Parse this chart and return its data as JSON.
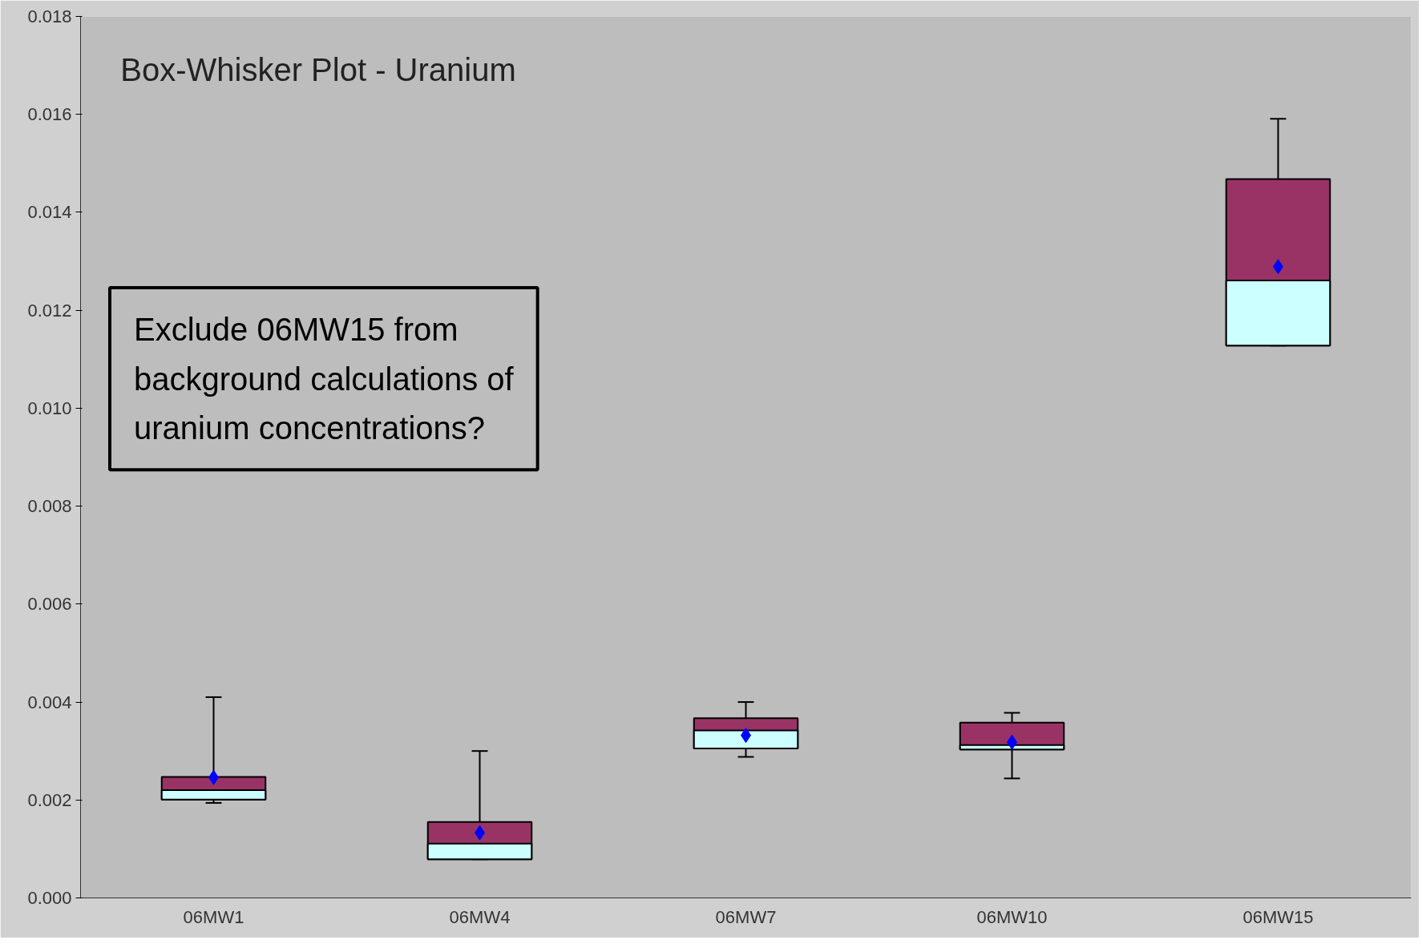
{
  "chart_data": {
    "type": "box",
    "title": "Box-Whisker Plot - Uranium",
    "categories": [
      "06MW1",
      "06MW4",
      "06MW7",
      "06MW10",
      "06MW15"
    ],
    "series": [
      {
        "color": "#993366",
        "boxes": [
          {
            "low": 0.00194,
            "q1": 0.00201,
            "median": 0.0022,
            "q3": 0.00247,
            "high": 0.0041,
            "mean": 0.00246
          },
          {
            "low": 0.00079,
            "q1": 0.00079,
            "median": 0.00111,
            "q3": 0.00155,
            "high": 0.003,
            "mean": 0.00133
          },
          {
            "low": 0.00288,
            "q1": 0.00305,
            "median": 0.00342,
            "q3": 0.00367,
            "high": 0.004,
            "mean": 0.00332
          },
          {
            "low": 0.00244,
            "q1": 0.00303,
            "median": 0.00312,
            "q3": 0.00358,
            "high": 0.00378,
            "mean": 0.00318
          },
          {
            "low": 0.01128,
            "q1": 0.01128,
            "median": 0.01261,
            "q3": 0.01468,
            "high": 0.01591,
            "mean": 0.01289
          }
        ]
      }
    ],
    "marker": "diamond",
    "ylim": [
      0,
      0.018
    ],
    "yticks": [
      {
        "value": 0,
        "label": "0.000"
      },
      {
        "value": 0.002,
        "label": "0.002"
      },
      {
        "value": 0.004,
        "label": "0.004"
      },
      {
        "value": 0.006,
        "label": "0.006"
      },
      {
        "value": 0.008,
        "label": "0.008"
      },
      {
        "value": 0.01,
        "label": "0.010"
      },
      {
        "value": 0.012,
        "label": "0.012"
      },
      {
        "value": 0.014,
        "label": "0.014"
      },
      {
        "value": 0.016,
        "label": "0.016"
      },
      {
        "value": 0.018,
        "label": "0.018"
      }
    ],
    "grid": false,
    "annotations": [
      "Exclude 06MW15 from\nbackground calculations of\nuranium concentrations?"
    ]
  }
}
